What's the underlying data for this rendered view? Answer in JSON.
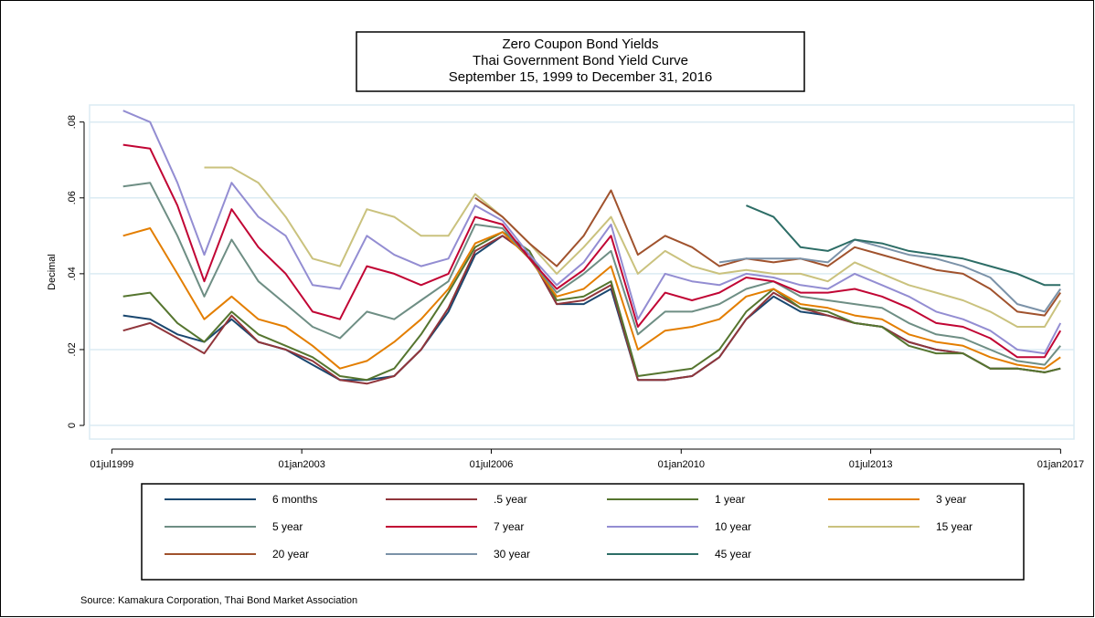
{
  "chart_data": {
    "type": "line",
    "title": [
      "Zero Coupon Bond Yields",
      "Thai Government Bond Yield Curve",
      "September 15, 1999 to December 31, 2016"
    ],
    "y_label": "Decimal",
    "source": "Source: Kamakura Corporation, Thai Bond Market Association",
    "x": [
      "1999-09-15",
      "2000-03-15",
      "2000-09-15",
      "2001-03-15",
      "2001-09-15",
      "2002-03-15",
      "2002-09-15",
      "2003-03-15",
      "2003-09-15",
      "2004-03-15",
      "2004-09-15",
      "2005-03-15",
      "2005-09-15",
      "2006-03-15",
      "2006-09-15",
      "2007-03-15",
      "2007-09-15",
      "2008-03-15",
      "2008-09-15",
      "2009-03-15",
      "2009-09-15",
      "2010-03-15",
      "2010-09-15",
      "2011-03-15",
      "2011-09-15",
      "2012-03-15",
      "2012-09-15",
      "2013-03-15",
      "2013-09-15",
      "2014-03-15",
      "2014-09-15",
      "2015-03-15",
      "2015-09-15",
      "2016-03-15",
      "2016-09-15",
      "2016-12-31"
    ],
    "xlim": [
      "1999-02-01",
      "2017-04-01"
    ],
    "xticks": [
      {
        "value": "1999-07-01",
        "label": "01jul1999"
      },
      {
        "value": "2003-01-01",
        "label": "01jan2003"
      },
      {
        "value": "2006-07-01",
        "label": "01jul2006"
      },
      {
        "value": "2010-01-01",
        "label": "01jan2010"
      },
      {
        "value": "2013-07-01",
        "label": "01jul2013"
      },
      {
        "value": "2017-01-01",
        "label": "01jan2017"
      }
    ],
    "ylim": [
      -0.0036,
      0.0845
    ],
    "yticks": [
      0,
      {
        "value": 0.02,
        "label": ".02"
      },
      {
        "value": 0.04,
        "label": ".04"
      },
      {
        "value": 0.06,
        "label": ".06"
      },
      {
        "value": 0.08,
        "label": ".08"
      }
    ],
    "grid": true,
    "series": [
      {
        "name": "6 months",
        "color": "#1a476f",
        "values": [
          0.029,
          0.028,
          0.024,
          0.022,
          0.028,
          0.022,
          0.02,
          0.016,
          0.012,
          0.012,
          0.013,
          0.02,
          0.03,
          0.045,
          0.05,
          0.045,
          0.032,
          0.032,
          0.036,
          0.012,
          0.012,
          0.013,
          0.018,
          0.028,
          0.034,
          0.03,
          0.029,
          0.027,
          0.026,
          0.022,
          0.02,
          0.019,
          0.015,
          0.015,
          0.014,
          0.015
        ]
      },
      {
        "name": ".5 year",
        "color": "#90353b",
        "values": [
          0.025,
          0.027,
          0.023,
          0.019,
          0.029,
          0.022,
          0.02,
          0.017,
          0.012,
          0.011,
          0.013,
          0.02,
          0.031,
          0.046,
          0.05,
          0.045,
          0.032,
          0.033,
          0.037,
          0.012,
          0.012,
          0.013,
          0.018,
          0.028,
          0.035,
          0.031,
          0.029,
          0.027,
          0.026,
          0.022,
          0.02,
          0.019,
          0.015,
          0.015,
          0.014,
          0.015
        ]
      },
      {
        "name": "1 year",
        "color": "#55752f",
        "values": [
          0.034,
          0.035,
          0.027,
          0.022,
          0.03,
          0.024,
          0.021,
          0.018,
          0.013,
          0.012,
          0.015,
          0.024,
          0.035,
          0.047,
          0.051,
          0.046,
          0.033,
          0.034,
          0.038,
          0.013,
          0.014,
          0.015,
          0.02,
          0.03,
          0.036,
          0.031,
          0.03,
          0.027,
          0.026,
          0.021,
          0.019,
          0.019,
          0.015,
          0.015,
          0.014,
          0.015
        ]
      },
      {
        "name": "3 year",
        "color": "#e37e00",
        "values": [
          0.05,
          0.052,
          0.04,
          0.028,
          0.034,
          0.028,
          0.026,
          0.021,
          0.015,
          0.017,
          0.022,
          0.028,
          0.036,
          0.048,
          0.051,
          0.044,
          0.034,
          0.036,
          0.042,
          0.02,
          0.025,
          0.026,
          0.028,
          0.034,
          0.036,
          0.032,
          0.031,
          0.029,
          0.028,
          0.024,
          0.022,
          0.021,
          0.018,
          0.016,
          0.015,
          0.018
        ]
      },
      {
        "name": "5 year",
        "color": "#6e8e84",
        "values": [
          0.063,
          0.064,
          0.05,
          0.034,
          0.049,
          0.038,
          0.032,
          0.026,
          0.023,
          0.03,
          0.028,
          0.033,
          0.038,
          0.053,
          0.052,
          0.044,
          0.035,
          0.04,
          0.046,
          0.024,
          0.03,
          0.03,
          0.032,
          0.036,
          0.038,
          0.034,
          0.033,
          0.032,
          0.031,
          0.027,
          0.024,
          0.023,
          0.02,
          0.017,
          0.016,
          0.021
        ]
      },
      {
        "name": "7 year",
        "color": "#c10534",
        "values": [
          0.074,
          0.073,
          0.058,
          0.038,
          0.057,
          0.047,
          0.04,
          0.03,
          0.028,
          0.042,
          0.04,
          0.037,
          0.04,
          0.055,
          0.053,
          0.044,
          0.036,
          0.041,
          0.05,
          0.026,
          0.035,
          0.033,
          0.035,
          0.039,
          0.038,
          0.035,
          0.035,
          0.036,
          0.034,
          0.031,
          0.027,
          0.026,
          0.023,
          0.018,
          0.018,
          0.025
        ]
      },
      {
        "name": "10 year",
        "color": "#938dd2",
        "values": [
          0.083,
          0.08,
          0.064,
          0.045,
          0.064,
          0.055,
          0.05,
          0.037,
          0.036,
          0.05,
          0.045,
          0.042,
          0.044,
          0.058,
          0.054,
          0.045,
          0.037,
          0.043,
          0.053,
          0.028,
          0.04,
          0.038,
          0.037,
          0.04,
          0.039,
          0.037,
          0.036,
          0.04,
          0.037,
          0.034,
          0.03,
          0.028,
          0.025,
          0.02,
          0.019,
          0.027
        ]
      },
      {
        "name": "15 year",
        "color": "#cac27e",
        "values": [
          null,
          null,
          null,
          0.068,
          0.068,
          0.064,
          0.055,
          0.044,
          0.042,
          0.057,
          0.055,
          0.05,
          0.05,
          0.061,
          0.055,
          0.048,
          0.04,
          0.047,
          0.055,
          0.04,
          0.046,
          0.042,
          0.04,
          0.041,
          0.04,
          0.04,
          0.038,
          0.043,
          0.04,
          0.037,
          0.035,
          0.033,
          0.03,
          0.026,
          0.026,
          0.033
        ]
      },
      {
        "name": "20 year",
        "color": "#a0522d",
        "values": [
          null,
          null,
          null,
          null,
          null,
          null,
          null,
          null,
          null,
          null,
          null,
          null,
          null,
          0.06,
          0.055,
          0.048,
          0.042,
          0.05,
          0.062,
          0.045,
          0.05,
          0.047,
          0.042,
          0.044,
          0.043,
          0.044,
          0.042,
          0.047,
          0.045,
          0.043,
          0.041,
          0.04,
          0.036,
          0.03,
          0.029,
          0.035
        ]
      },
      {
        "name": "30 year",
        "color": "#7b92a8",
        "values": [
          null,
          null,
          null,
          null,
          null,
          null,
          null,
          null,
          null,
          null,
          null,
          null,
          null,
          null,
          null,
          null,
          null,
          null,
          null,
          null,
          null,
          null,
          0.043,
          0.044,
          0.044,
          0.044,
          0.043,
          0.049,
          0.047,
          0.045,
          0.044,
          0.042,
          0.039,
          0.032,
          0.03,
          0.036
        ]
      },
      {
        "name": "45 year",
        "color": "#2d6d66",
        "values": [
          null,
          null,
          null,
          null,
          null,
          null,
          null,
          null,
          null,
          null,
          null,
          null,
          null,
          null,
          null,
          null,
          null,
          null,
          null,
          null,
          null,
          null,
          null,
          0.058,
          0.055,
          0.047,
          0.046,
          0.049,
          0.048,
          0.046,
          0.045,
          0.044,
          0.042,
          0.04,
          0.037,
          0.037
        ]
      }
    ]
  }
}
